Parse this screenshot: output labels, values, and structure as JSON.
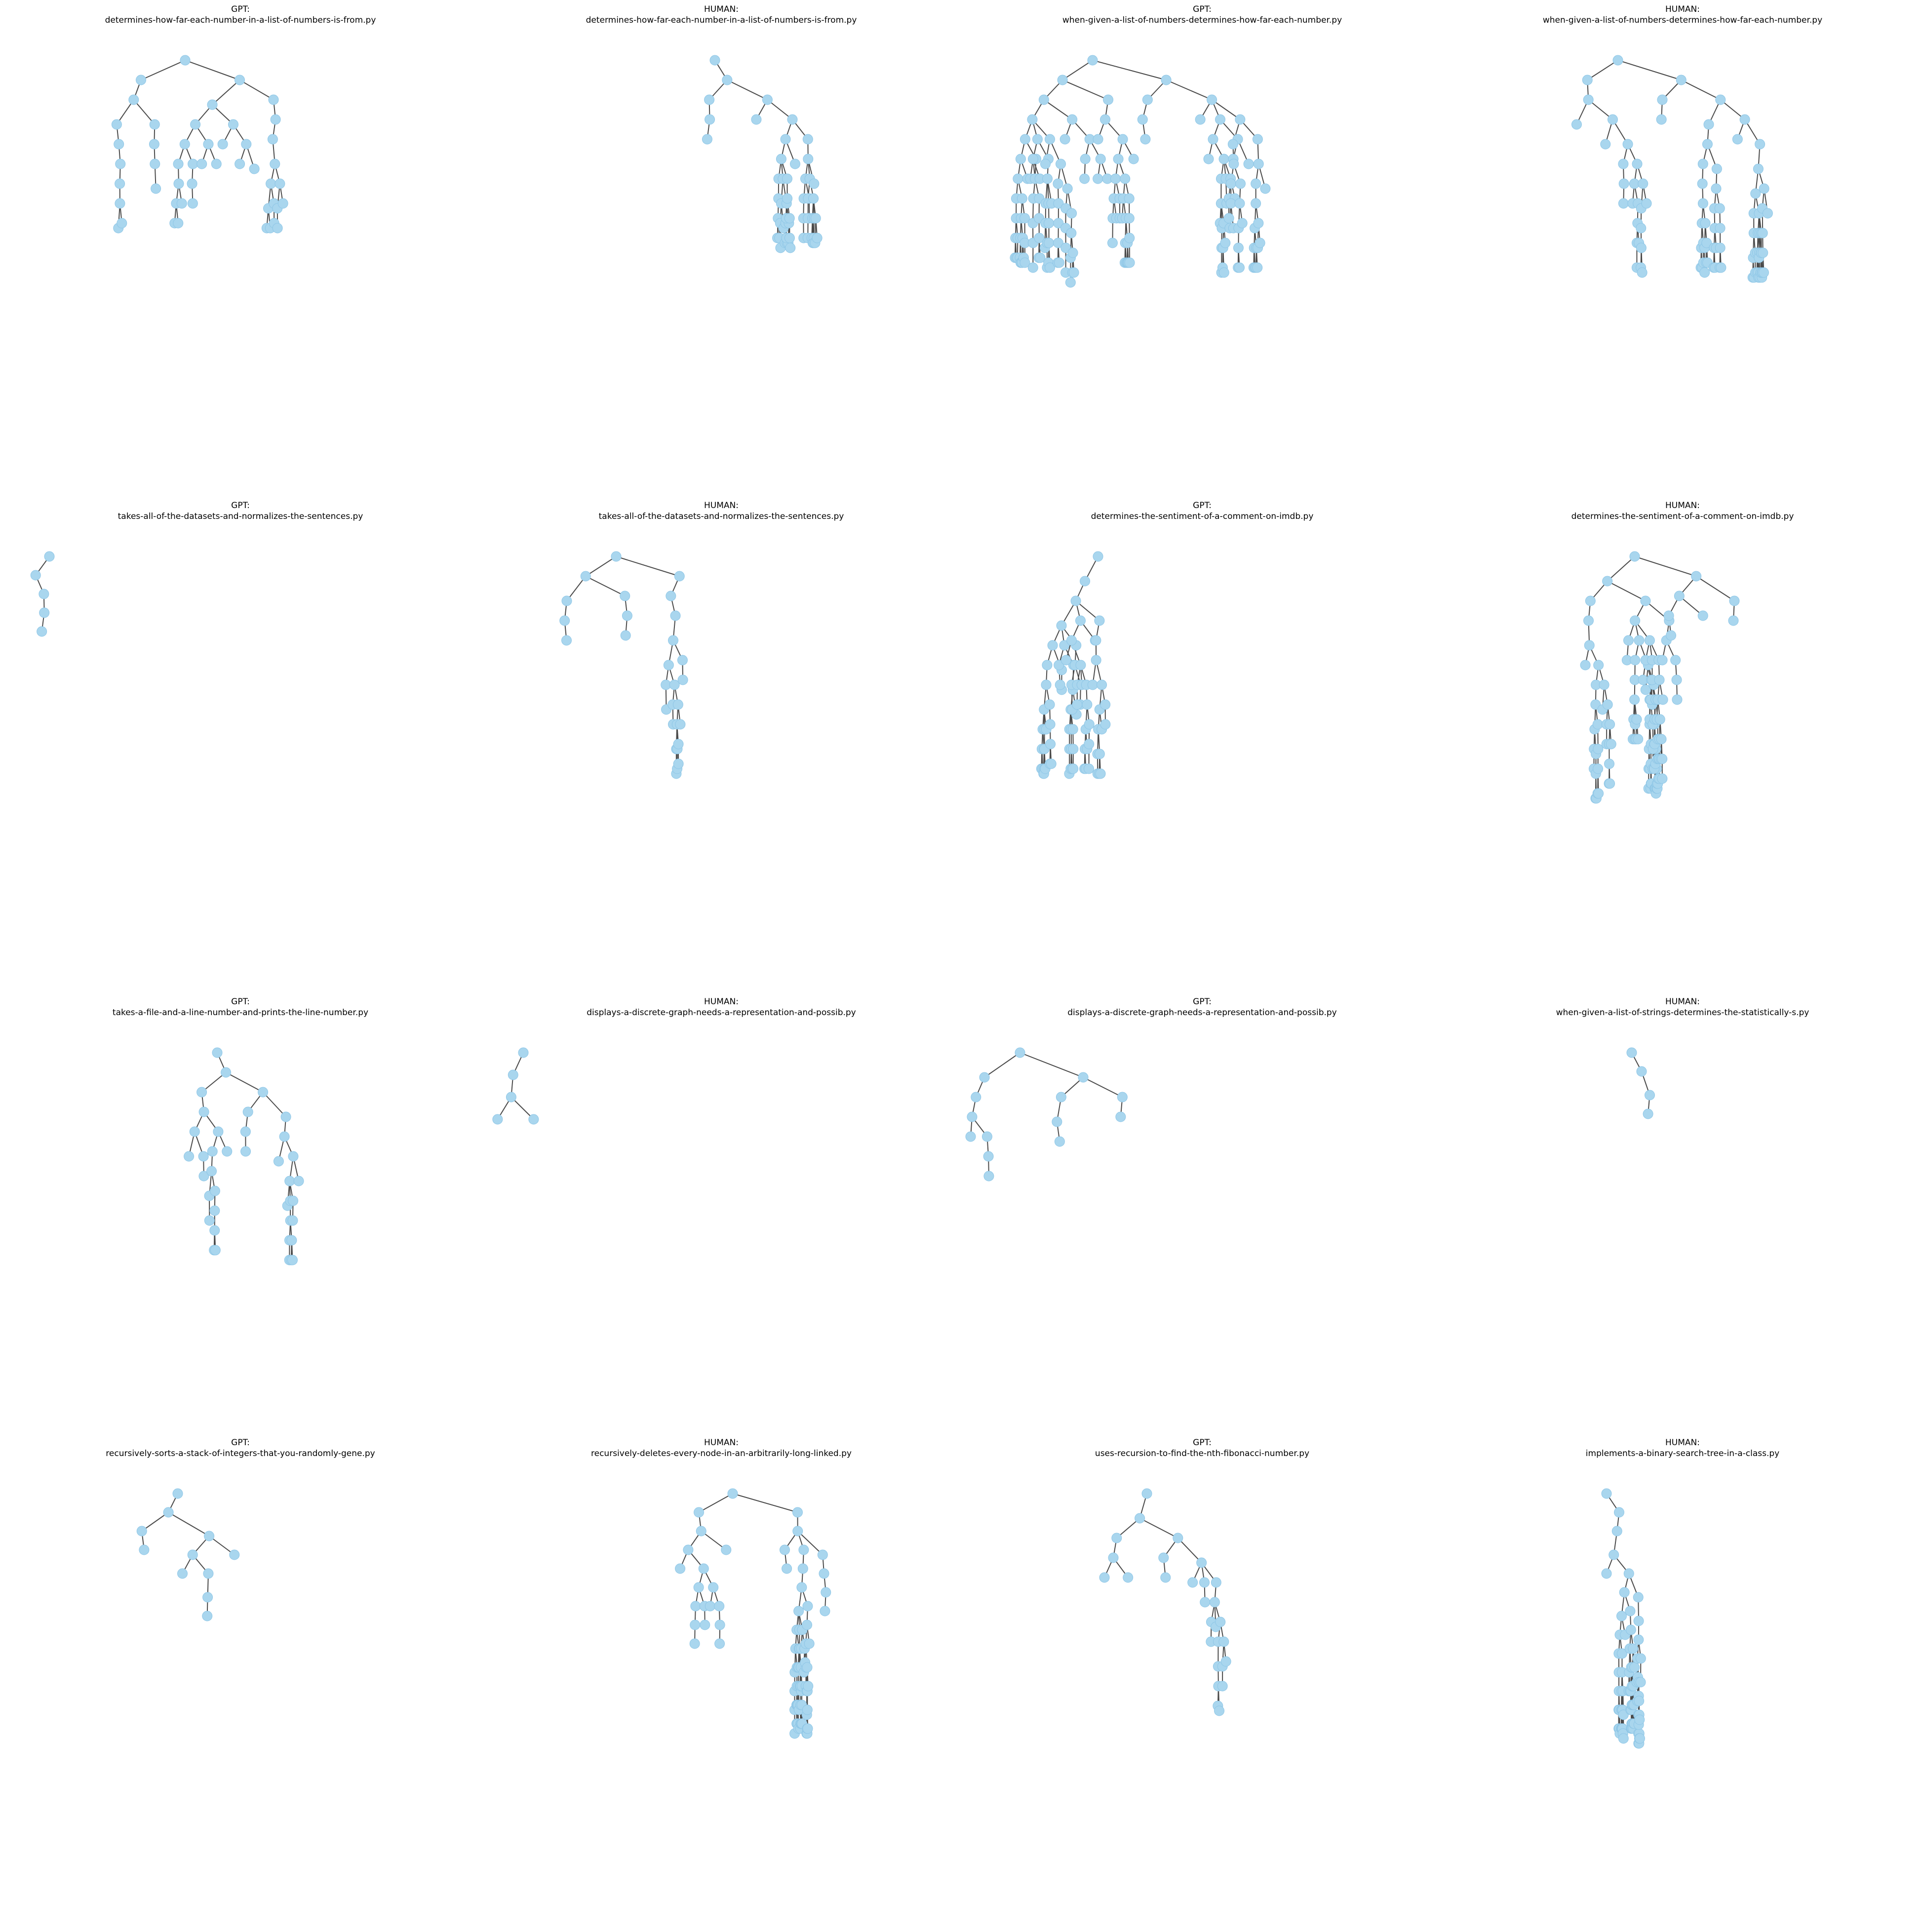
{
  "colors": {
    "node_fill": "#a9d6ee",
    "node_stroke": "#8ec6e6",
    "edge": "#4a4a4a",
    "node_label": "#1a1a1a"
  },
  "panels": [
    {
      "source": "GPT:",
      "file": "determines-how-far-each-number-in-a-list-of-numbers-is-from.py"
    },
    {
      "source": "HUMAN:",
      "file": "determines-how-far-each-number-in-a-list-of-numbers-is-from.py"
    },
    {
      "source": "GPT:",
      "file": "when-given-a-list-of-numbers-determines-how-far-each-number.py"
    },
    {
      "source": "HUMAN:",
      "file": "when-given-a-list-of-numbers-determines-how-far-each-number.py"
    },
    {
      "source": "GPT:",
      "file": "takes-all-of-the-datasets-and-normalizes-the-sentences.py"
    },
    {
      "source": "HUMAN:",
      "file": "takes-all-of-the-datasets-and-normalizes-the-sentences.py"
    },
    {
      "source": "GPT:",
      "file": "determines-the-sentiment-of-a-comment-on-imdb.py"
    },
    {
      "source": "HUMAN:",
      "file": "determines-the-sentiment-of-a-comment-on-imdb.py"
    },
    {
      "source": "GPT:",
      "file": "takes-a-file-and-a-line-number-and-prints-the-line-number.py"
    },
    {
      "source": "HUMAN:",
      "file": "displays-a-discrete-graph-needs-a-representation-and-possib.py"
    },
    {
      "source": "GPT:",
      "file": "displays-a-discrete-graph-needs-a-representation-and-possib.py"
    },
    {
      "source": "HUMAN:",
      "file": "when-given-a-list-of-strings-determines-the-statistically-s.py"
    },
    {
      "source": "GPT:",
      "file": "recursively-sorts-a-stack-of-integers-that-you-randomly-gene.py"
    },
    {
      "source": "HUMAN:",
      "file": "recursively-deletes-every-node-in-an-arbitrarily-long-linked.py"
    },
    {
      "source": "GPT:",
      "file": "uses-recursion-to-find-the-nth-fibonacci-number.py"
    },
    {
      "source": "HUMAN:",
      "file": "implements-a-binary-search-tree-in-a-class.py"
    }
  ]
}
